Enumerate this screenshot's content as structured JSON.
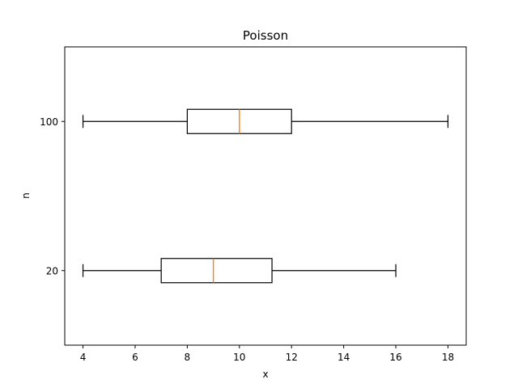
{
  "chart_data": {
    "type": "boxplot",
    "orientation": "horizontal",
    "title": "Poisson",
    "xlabel": "x",
    "ylabel": "n",
    "xlim": [
      3.3,
      18.7
    ],
    "xticks": [
      4,
      6,
      8,
      10,
      12,
      14,
      16,
      18
    ],
    "grid": false,
    "series": [
      {
        "label": "20",
        "whisker_low": 4,
        "q1": 7,
        "median": 9,
        "q3": 11.25,
        "whisker_high": 16
      },
      {
        "label": "100",
        "whisker_low": 4,
        "q1": 8,
        "median": 10,
        "q3": 12,
        "whisker_high": 18
      }
    ],
    "colors": {
      "box": "#000000",
      "median": "#ff7f0e",
      "frame": "#000000"
    }
  }
}
